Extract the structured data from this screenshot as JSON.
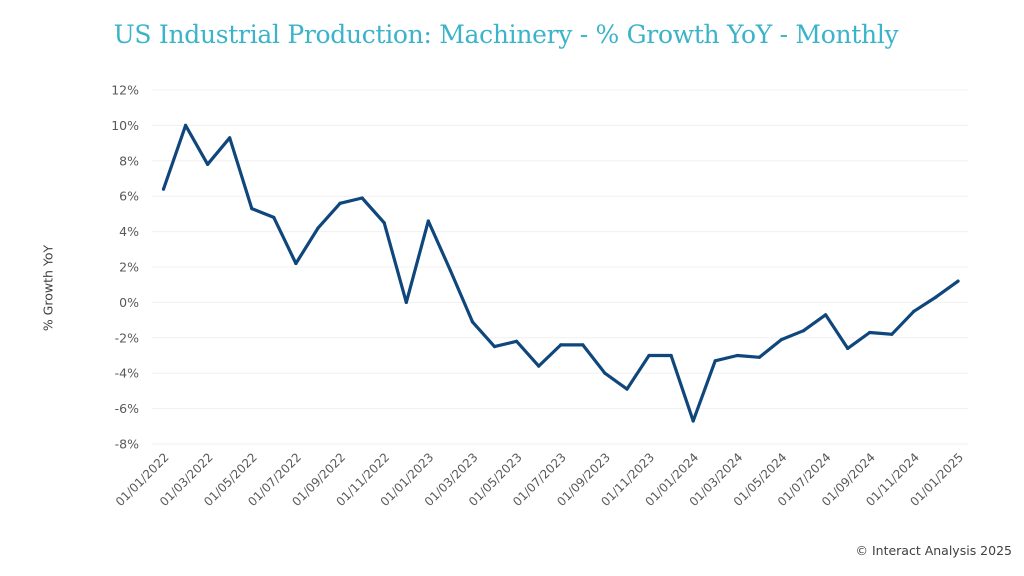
{
  "chart_data": {
    "type": "line",
    "title": "US Industrial Production: Machinery - % Growth YoY - Monthly",
    "xlabel": "",
    "ylabel": "% Growth YoY",
    "ylim": [
      -8,
      12
    ],
    "yticks": [
      12,
      10,
      8,
      6,
      4,
      2,
      0,
      -2,
      -4,
      -6,
      -8
    ],
    "ytick_labels": [
      "12%",
      "10%",
      "8%",
      "6%",
      "4%",
      "2%",
      "0%",
      "-2%",
      "-4%",
      "-6%",
      "-8%"
    ],
    "xtick_labels": [
      "01/01/2022",
      "01/03/2022",
      "01/05/2022",
      "01/07/2022",
      "01/09/2022",
      "01/11/2022",
      "01/01/2023",
      "01/03/2023",
      "01/05/2023",
      "01/07/2023",
      "01/09/2023",
      "01/11/2023",
      "01/01/2024",
      "01/03/2024",
      "01/05/2024",
      "01/07/2024",
      "01/09/2024",
      "01/11/2024",
      "01/01/2025"
    ],
    "grid": true,
    "legend": "none",
    "x": [
      "01/01/2022",
      "01/02/2022",
      "01/03/2022",
      "01/04/2022",
      "01/05/2022",
      "01/06/2022",
      "01/07/2022",
      "01/08/2022",
      "01/09/2022",
      "01/10/2022",
      "01/11/2022",
      "01/12/2022",
      "01/01/2023",
      "01/02/2023",
      "01/03/2023",
      "01/04/2023",
      "01/05/2023",
      "01/06/2023",
      "01/07/2023",
      "01/08/2023",
      "01/09/2023",
      "01/10/2023",
      "01/11/2023",
      "01/12/2023",
      "01/01/2024",
      "01/02/2024",
      "01/03/2024",
      "01/04/2024",
      "01/05/2024",
      "01/06/2024",
      "01/07/2024",
      "01/08/2024",
      "01/09/2024",
      "01/10/2024",
      "01/11/2024",
      "01/12/2024",
      "01/01/2025"
    ],
    "series": [
      {
        "name": "% Growth YoY",
        "color": "#0f477c",
        "values": [
          6.4,
          10.0,
          7.8,
          9.3,
          5.3,
          4.8,
          2.2,
          4.2,
          5.6,
          5.9,
          4.5,
          0.0,
          4.6,
          1.8,
          -1.1,
          -2.5,
          -2.2,
          -3.6,
          -2.4,
          -2.4,
          -4.0,
          -4.9,
          -3.0,
          -3.0,
          -6.7,
          -3.3,
          -3.0,
          -3.1,
          -2.1,
          -1.6,
          -0.7,
          -2.6,
          -1.7,
          -1.8,
          -0.5,
          0.3,
          1.2
        ]
      }
    ]
  },
  "copyright": "© Interact Analysis 2025",
  "colors": {
    "title": "#3bb3c9",
    "line": "#0f477c"
  }
}
